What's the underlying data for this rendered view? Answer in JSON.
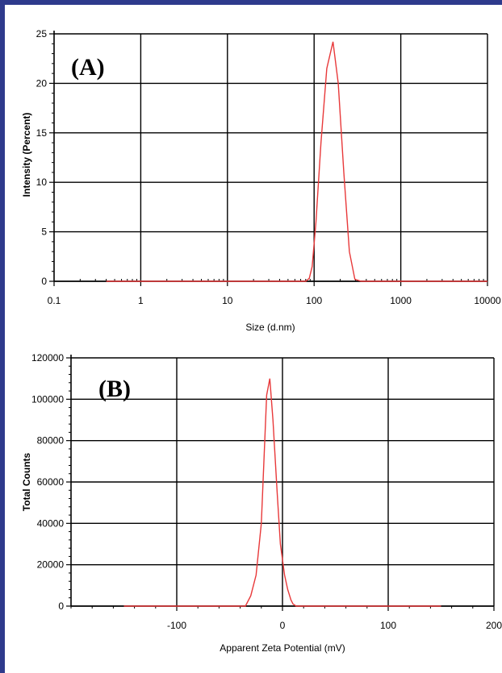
{
  "colors": {
    "frame": "#2e3a8c",
    "series": "#e8393a",
    "grid": "#000000"
  },
  "chart_data": [
    {
      "type": "line",
      "panel_label": "(A)",
      "xlabel": "Size (d.nm)",
      "ylabel": "Intensity (Percent)",
      "xscale": "log",
      "xlim": [
        0.1,
        10000
      ],
      "ylim": [
        0,
        25
      ],
      "xticks": [
        0.1,
        1,
        10,
        100,
        1000,
        10000
      ],
      "xtick_labels": [
        "0.1",
        "1",
        "10",
        "100",
        "1000",
        "10000"
      ],
      "yticks": [
        0,
        5,
        10,
        15,
        20,
        25
      ],
      "ytick_labels": [
        "0",
        "5",
        "10",
        "15",
        "20",
        "25"
      ],
      "grid": true,
      "series": [
        {
          "x": [
            0.4,
            1,
            10,
            80,
            88,
            95,
            105,
            120,
            140,
            165,
            190,
            220,
            255,
            295,
            350,
            1000,
            10000
          ],
          "y": [
            0,
            0,
            0,
            0,
            0.3,
            1.5,
            6,
            14,
            21.5,
            24.2,
            20,
            11,
            3,
            0.2,
            0,
            0,
            0
          ]
        }
      ]
    },
    {
      "type": "line",
      "panel_label": "(B)",
      "xlabel": "Apparent Zeta Potential (mV)",
      "ylabel": "Total Counts",
      "xlim": [
        -200,
        200
      ],
      "ylim": [
        0,
        120000
      ],
      "xticks": [
        -100,
        0,
        100,
        200
      ],
      "xtick_labels": [
        "-100",
        "0",
        "100",
        "200"
      ],
      "yticks": [
        0,
        20000,
        40000,
        60000,
        80000,
        100000,
        120000
      ],
      "ytick_labels": [
        "0",
        "20000",
        "40000",
        "60000",
        "80000",
        "100000",
        "120000"
      ],
      "grid": true,
      "series": [
        {
          "x": [
            -150,
            -35,
            -30,
            -25,
            -20,
            -15,
            -12,
            -9,
            -5,
            -2,
            2,
            5,
            8,
            10,
            13,
            150
          ],
          "y": [
            0,
            0,
            5000,
            15000,
            40000,
            102000,
            110000,
            90000,
            55000,
            30000,
            15000,
            8000,
            3000,
            1000,
            0,
            0
          ]
        }
      ]
    }
  ]
}
